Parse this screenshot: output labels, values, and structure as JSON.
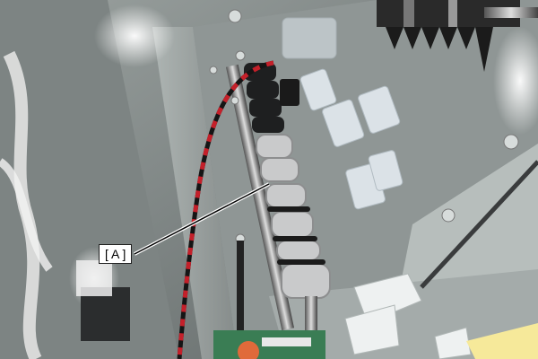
{
  "callout": {
    "label": "[ A ]"
  },
  "colors": {
    "panel": "#8c9392",
    "panel_light": "#b9c0bf",
    "roller_dark": "#1e1f20",
    "roller_light": "#c9cacb",
    "cable_red": "#c4202a",
    "cable_black": "#151515",
    "board_green": "#3a7d54",
    "leader_line": "#000000"
  }
}
